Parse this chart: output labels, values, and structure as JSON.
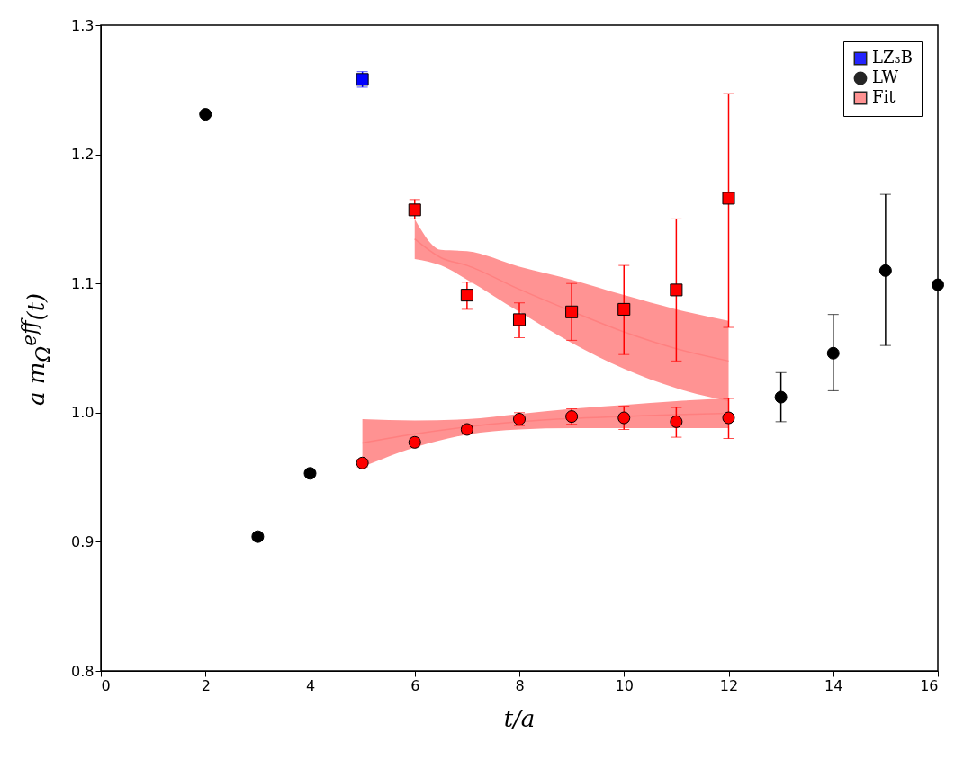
{
  "chart_data": {
    "type": "scatter",
    "xlabel": "t/a",
    "ylabel": "a m$_{Ω}$$^{eff}$(t)",
    "xlim": [
      0,
      16
    ],
    "ylim": [
      0.8,
      1.3
    ],
    "xticks": [
      0,
      2,
      4,
      6,
      8,
      10,
      12,
      14,
      16
    ],
    "yticks": [
      0.8,
      0.9,
      {
        "value": 1.0,
        "label": "1.0"
      },
      1.1,
      1.2,
      1.3
    ],
    "grid": false,
    "legend": "top right",
    "series": [
      {
        "name": "LZ₃B",
        "marker": "square",
        "color": "#0000ff",
        "x": [
          5
        ],
        "values": [
          1.258
        ],
        "errors": [
          0.006
        ]
      },
      {
        "name": "LW",
        "marker": "circle",
        "color": "#000000",
        "x": [
          2,
          3,
          4,
          13,
          14,
          15,
          16
        ],
        "values": [
          1.231,
          0.904,
          0.953,
          1.012,
          1.046,
          1.11,
          1.099
        ],
        "errors": [
          null,
          null,
          null,
          [
            0.993,
            1.031
          ],
          [
            1.017,
            1.076
          ],
          [
            1.052,
            1.169
          ],
          null
        ]
      },
      {
        "name": "Fit",
        "type": "line",
        "color": "#ff8080",
        "x": [
          6,
          6.5,
          7,
          8,
          9,
          10,
          11,
          12
        ],
        "values": [
          1.1345,
          1.12,
          1.114,
          1.0955,
          1.0785,
          1.0625,
          1.0495,
          1.04
        ],
        "lower": [
          1.119,
          1.114,
          1.103,
          1.078,
          1.054,
          1.034,
          1.019,
          1.009
        ],
        "upper": [
          1.15,
          1.126,
          1.125,
          1.113,
          1.103,
          1.091,
          1.08,
          1.071
        ]
      },
      {
        "type": "line",
        "color": "#ff7f7f",
        "x": [
          5,
          6,
          7,
          8,
          9,
          10,
          11,
          12
        ],
        "values": [
          0.9765,
          0.9835,
          0.989,
          0.993,
          0.9955,
          0.997,
          0.9985,
          0.9995
        ],
        "lower": [
          0.958,
          0.973,
          0.983,
          0.987,
          0.988,
          0.988,
          0.988,
          0.988
        ],
        "upper": [
          0.995,
          0.994,
          0.995,
          0.999,
          1.003,
          1.006,
          1.009,
          1.011
        ]
      },
      {
        "marker": "square",
        "color": "#ff0000",
        "x": [
          6,
          7,
          8,
          9,
          10,
          11,
          12
        ],
        "values": [
          1.157,
          1.091,
          1.072,
          1.078,
          1.08,
          1.095,
          1.166
        ],
        "errors": [
          [
            1.15,
            1.165
          ],
          [
            1.08,
            1.101
          ],
          [
            1.058,
            1.085
          ],
          [
            1.056,
            1.1
          ],
          [
            1.045,
            1.114
          ],
          [
            1.04,
            1.15
          ],
          [
            1.066,
            1.247
          ]
        ]
      },
      {
        "marker": "circle",
        "color": "#ff0000",
        "x": [
          5,
          6,
          7,
          8,
          9,
          10,
          11,
          12
        ],
        "values": [
          0.961,
          0.977,
          0.987,
          0.995,
          0.997,
          0.996,
          0.993,
          0.996
        ],
        "errors": [
          0.003,
          0.003,
          0.003,
          0.005,
          0.006,
          0.009,
          [
            0.981,
            1.004
          ],
          [
            0.98,
            1.011
          ]
        ]
      }
    ]
  }
}
